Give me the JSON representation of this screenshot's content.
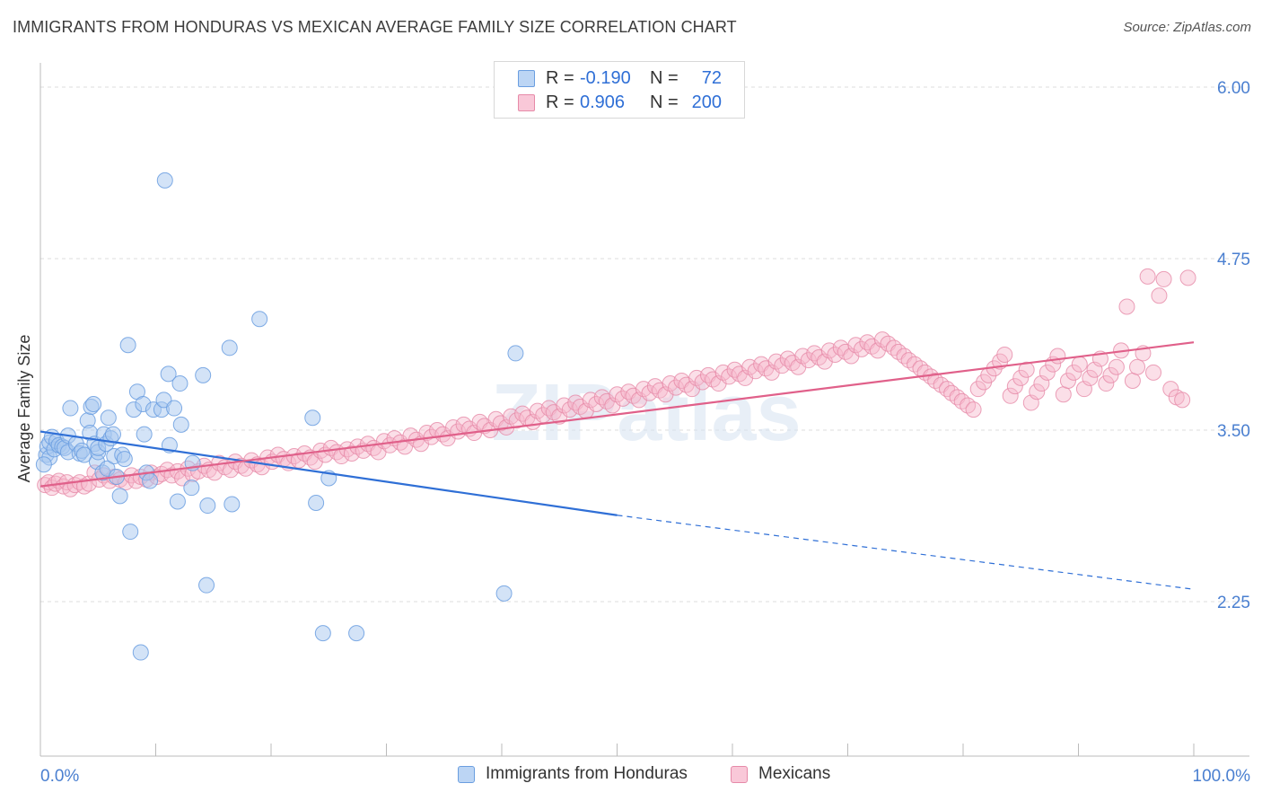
{
  "title": "IMMIGRANTS FROM HONDURAS VS MEXICAN AVERAGE FAMILY SIZE CORRELATION CHART",
  "source": "Source: ZipAtlas.com",
  "watermark": "ZIPatlas",
  "colors": {
    "blue_fill": "#a8c8f0",
    "blue_stroke": "#6a9ee0",
    "blue_line": "#2f6fd6",
    "pink_fill": "#f6b8cc",
    "pink_stroke": "#e68aa8",
    "pink_line": "#e0608a",
    "axis_label": "#4a7fd0"
  },
  "legend": {
    "rows": [
      {
        "r_label": "R =",
        "r_value": "-0.190",
        "n_label": "N =",
        "n_value": "72",
        "series": "blue"
      },
      {
        "r_label": "R =",
        "r_value": "0.906",
        "n_label": "N =",
        "n_value": "200",
        "series": "pink"
      }
    ]
  },
  "bottom_legend": [
    {
      "label": "Immigrants from Honduras",
      "series": "blue"
    },
    {
      "label": "Mexicans",
      "series": "pink"
    }
  ],
  "chart_data": {
    "type": "scatter",
    "title": "IMMIGRANTS FROM HONDURAS VS MEXICAN AVERAGE FAMILY SIZE CORRELATION CHART",
    "xlabel": "",
    "ylabel": "Average Family Size",
    "xlim": [
      0,
      100
    ],
    "ylim": [
      1.05,
      6.12
    ],
    "x_tick_labels": [
      "0.0%",
      "100.0%"
    ],
    "y_ticks": [
      2.25,
      3.5,
      4.75,
      6.0
    ],
    "y_tick_labels": [
      "2.25",
      "3.50",
      "4.75",
      "6.00"
    ],
    "grid": "horizontal dashed",
    "legend_position": "top-center",
    "series": [
      {
        "name": "Immigrants from Honduras",
        "color": "#a8c8f0",
        "trend": {
          "x_solid": [
            0,
            50
          ],
          "y_solid": [
            3.49,
            2.88
          ],
          "x_dashed": [
            50,
            100
          ],
          "y_dashed": [
            2.88,
            2.34
          ]
        },
        "points": [
          [
            0.5,
            3.32
          ],
          [
            0.6,
            3.38
          ],
          [
            0.8,
            3.41
          ],
          [
            0.8,
            3.3
          ],
          [
            1.0,
            3.45
          ],
          [
            1.2,
            3.36
          ],
          [
            1.4,
            3.42
          ],
          [
            1.6,
            3.39
          ],
          [
            1.9,
            3.38
          ],
          [
            2.1,
            3.37
          ],
          [
            2.4,
            3.46
          ],
          [
            2.4,
            3.34
          ],
          [
            2.6,
            3.66
          ],
          [
            3.1,
            3.4
          ],
          [
            3.4,
            3.33
          ],
          [
            3.6,
            3.35
          ],
          [
            3.8,
            3.32
          ],
          [
            4.1,
            3.57
          ],
          [
            4.3,
            3.48
          ],
          [
            4.4,
            3.67
          ],
          [
            4.6,
            3.69
          ],
          [
            4.7,
            3.4
          ],
          [
            4.9,
            3.27
          ],
          [
            5.0,
            3.34
          ],
          [
            5.0,
            3.37
          ],
          [
            5.4,
            3.19
          ],
          [
            5.5,
            3.47
          ],
          [
            5.7,
            3.4
          ],
          [
            5.8,
            3.22
          ],
          [
            5.9,
            3.59
          ],
          [
            6.1,
            3.44
          ],
          [
            6.3,
            3.47
          ],
          [
            6.4,
            3.31
          ],
          [
            6.6,
            3.16
          ],
          [
            6.9,
            3.02
          ],
          [
            7.1,
            3.32
          ],
          [
            7.3,
            3.29
          ],
          [
            7.6,
            4.12
          ],
          [
            7.8,
            2.76
          ],
          [
            8.1,
            3.65
          ],
          [
            8.4,
            3.78
          ],
          [
            8.7,
            1.88
          ],
          [
            8.9,
            3.69
          ],
          [
            9.0,
            3.47
          ],
          [
            9.2,
            3.19
          ],
          [
            9.5,
            3.13
          ],
          [
            9.8,
            3.65
          ],
          [
            10.5,
            3.65
          ],
          [
            10.7,
            3.72
          ],
          [
            10.8,
            5.32
          ],
          [
            11.1,
            3.91
          ],
          [
            11.2,
            3.39
          ],
          [
            11.6,
            3.66
          ],
          [
            11.9,
            2.98
          ],
          [
            12.1,
            3.84
          ],
          [
            12.2,
            3.54
          ],
          [
            13.1,
            3.08
          ],
          [
            13.2,
            3.26
          ],
          [
            14.1,
            3.9
          ],
          [
            14.4,
            2.37
          ],
          [
            14.5,
            2.95
          ],
          [
            16.4,
            4.1
          ],
          [
            16.6,
            2.96
          ],
          [
            19.0,
            4.31
          ],
          [
            23.6,
            3.59
          ],
          [
            23.9,
            2.97
          ],
          [
            24.5,
            2.02
          ],
          [
            25.0,
            3.15
          ],
          [
            27.4,
            2.02
          ],
          [
            40.2,
            2.31
          ],
          [
            41.2,
            4.06
          ],
          [
            0.3,
            3.25
          ]
        ]
      },
      {
        "name": "Mexicans",
        "color": "#f6b8cc",
        "trend": {
          "x_solid": [
            0,
            100
          ],
          "y_solid": [
            3.09,
            4.14
          ]
        },
        "points": [
          [
            0.4,
            3.1
          ],
          [
            0.7,
            3.12
          ],
          [
            1.0,
            3.08
          ],
          [
            1.3,
            3.11
          ],
          [
            1.6,
            3.13
          ],
          [
            2.0,
            3.09
          ],
          [
            2.3,
            3.12
          ],
          [
            2.6,
            3.07
          ],
          [
            3.0,
            3.1
          ],
          [
            3.4,
            3.12
          ],
          [
            3.8,
            3.09
          ],
          [
            4.2,
            3.11
          ],
          [
            4.7,
            3.19
          ],
          [
            5.1,
            3.14
          ],
          [
            5.5,
            3.17
          ],
          [
            6.0,
            3.13
          ],
          [
            6.4,
            3.16
          ],
          [
            6.9,
            3.14
          ],
          [
            7.4,
            3.12
          ],
          [
            7.9,
            3.17
          ],
          [
            8.3,
            3.13
          ],
          [
            8.7,
            3.16
          ],
          [
            9.2,
            3.14
          ],
          [
            9.6,
            3.19
          ],
          [
            10.1,
            3.16
          ],
          [
            10.5,
            3.18
          ],
          [
            11.0,
            3.21
          ],
          [
            11.4,
            3.17
          ],
          [
            11.9,
            3.2
          ],
          [
            12.3,
            3.15
          ],
          [
            12.8,
            3.22
          ],
          [
            13.2,
            3.18
          ],
          [
            13.7,
            3.2
          ],
          [
            14.2,
            3.24
          ],
          [
            14.6,
            3.21
          ],
          [
            15.1,
            3.19
          ],
          [
            15.5,
            3.26
          ],
          [
            16.0,
            3.23
          ],
          [
            16.5,
            3.21
          ],
          [
            16.9,
            3.27
          ],
          [
            17.4,
            3.24
          ],
          [
            17.8,
            3.22
          ],
          [
            18.3,
            3.28
          ],
          [
            18.8,
            3.25
          ],
          [
            19.2,
            3.23
          ],
          [
            19.7,
            3.3
          ],
          [
            20.1,
            3.27
          ],
          [
            20.6,
            3.32
          ],
          [
            21.1,
            3.29
          ],
          [
            21.5,
            3.26
          ],
          [
            22.0,
            3.31
          ],
          [
            22.4,
            3.28
          ],
          [
            22.9,
            3.33
          ],
          [
            23.4,
            3.3
          ],
          [
            23.8,
            3.27
          ],
          [
            24.3,
            3.35
          ],
          [
            24.7,
            3.32
          ],
          [
            25.2,
            3.37
          ],
          [
            25.7,
            3.34
          ],
          [
            26.1,
            3.31
          ],
          [
            26.6,
            3.36
          ],
          [
            27.0,
            3.33
          ],
          [
            27.5,
            3.38
          ],
          [
            28.0,
            3.35
          ],
          [
            28.4,
            3.4
          ],
          [
            28.9,
            3.37
          ],
          [
            29.3,
            3.34
          ],
          [
            29.8,
            3.42
          ],
          [
            30.3,
            3.39
          ],
          [
            30.7,
            3.44
          ],
          [
            31.2,
            3.41
          ],
          [
            31.6,
            3.38
          ],
          [
            32.1,
            3.46
          ],
          [
            32.6,
            3.43
          ],
          [
            33.0,
            3.4
          ],
          [
            33.5,
            3.48
          ],
          [
            33.9,
            3.45
          ],
          [
            34.4,
            3.5
          ],
          [
            34.9,
            3.47
          ],
          [
            35.3,
            3.44
          ],
          [
            35.8,
            3.52
          ],
          [
            36.2,
            3.49
          ],
          [
            36.7,
            3.54
          ],
          [
            37.2,
            3.51
          ],
          [
            37.6,
            3.48
          ],
          [
            38.1,
            3.56
          ],
          [
            38.5,
            3.53
          ],
          [
            39.0,
            3.5
          ],
          [
            39.5,
            3.58
          ],
          [
            39.9,
            3.55
          ],
          [
            40.4,
            3.52
          ],
          [
            40.8,
            3.6
          ],
          [
            41.3,
            3.57
          ],
          [
            41.8,
            3.62
          ],
          [
            42.2,
            3.59
          ],
          [
            42.7,
            3.56
          ],
          [
            43.1,
            3.64
          ],
          [
            43.6,
            3.61
          ],
          [
            44.1,
            3.66
          ],
          [
            44.5,
            3.63
          ],
          [
            45.0,
            3.6
          ],
          [
            45.4,
            3.68
          ],
          [
            45.9,
            3.65
          ],
          [
            46.4,
            3.7
          ],
          [
            46.8,
            3.67
          ],
          [
            47.3,
            3.64
          ],
          [
            47.7,
            3.72
          ],
          [
            48.2,
            3.69
          ],
          [
            48.7,
            3.74
          ],
          [
            49.1,
            3.71
          ],
          [
            49.6,
            3.68
          ],
          [
            50.0,
            3.76
          ],
          [
            50.5,
            3.73
          ],
          [
            51.0,
            3.78
          ],
          [
            51.4,
            3.75
          ],
          [
            51.9,
            3.72
          ],
          [
            52.3,
            3.8
          ],
          [
            52.8,
            3.77
          ],
          [
            53.3,
            3.82
          ],
          [
            53.7,
            3.79
          ],
          [
            54.2,
            3.76
          ],
          [
            54.6,
            3.84
          ],
          [
            55.1,
            3.81
          ],
          [
            55.6,
            3.86
          ],
          [
            56.0,
            3.83
          ],
          [
            56.5,
            3.8
          ],
          [
            56.9,
            3.88
          ],
          [
            57.4,
            3.85
          ],
          [
            57.9,
            3.9
          ],
          [
            58.3,
            3.87
          ],
          [
            58.8,
            3.84
          ],
          [
            59.2,
            3.92
          ],
          [
            59.7,
            3.89
          ],
          [
            60.2,
            3.94
          ],
          [
            60.6,
            3.91
          ],
          [
            61.1,
            3.88
          ],
          [
            61.5,
            3.96
          ],
          [
            62.0,
            3.93
          ],
          [
            62.5,
            3.98
          ],
          [
            62.9,
            3.95
          ],
          [
            63.4,
            3.92
          ],
          [
            63.8,
            4.0
          ],
          [
            64.3,
            3.97
          ],
          [
            64.8,
            4.02
          ],
          [
            65.2,
            3.99
          ],
          [
            65.7,
            3.96
          ],
          [
            66.1,
            4.04
          ],
          [
            66.6,
            4.01
          ],
          [
            67.1,
            4.06
          ],
          [
            67.5,
            4.03
          ],
          [
            68.0,
            4.0
          ],
          [
            68.4,
            4.08
          ],
          [
            68.9,
            4.05
          ],
          [
            69.4,
            4.1
          ],
          [
            69.8,
            4.07
          ],
          [
            70.3,
            4.04
          ],
          [
            70.7,
            4.12
          ],
          [
            71.2,
            4.09
          ],
          [
            71.7,
            4.14
          ],
          [
            72.1,
            4.11
          ],
          [
            72.6,
            4.08
          ],
          [
            73.0,
            4.16
          ],
          [
            73.5,
            4.13
          ],
          [
            74.0,
            4.1
          ],
          [
            74.4,
            4.07
          ],
          [
            74.9,
            4.04
          ],
          [
            75.3,
            4.01
          ],
          [
            75.8,
            3.98
          ],
          [
            76.3,
            3.95
          ],
          [
            76.7,
            3.92
          ],
          [
            77.2,
            3.89
          ],
          [
            77.6,
            3.86
          ],
          [
            78.1,
            3.83
          ],
          [
            78.6,
            3.8
          ],
          [
            79.0,
            3.77
          ],
          [
            79.5,
            3.74
          ],
          [
            79.9,
            3.71
          ],
          [
            80.4,
            3.68
          ],
          [
            80.9,
            3.65
          ],
          [
            81.3,
            3.8
          ],
          [
            81.8,
            3.85
          ],
          [
            82.2,
            3.9
          ],
          [
            82.7,
            3.95
          ],
          [
            83.2,
            4.0
          ],
          [
            83.6,
            4.05
          ],
          [
            84.1,
            3.75
          ],
          [
            84.5,
            3.82
          ],
          [
            85.0,
            3.88
          ],
          [
            85.5,
            3.94
          ],
          [
            85.9,
            3.7
          ],
          [
            86.4,
            3.78
          ],
          [
            86.8,
            3.84
          ],
          [
            87.3,
            3.92
          ],
          [
            87.8,
            3.98
          ],
          [
            88.2,
            4.04
          ],
          [
            88.7,
            3.76
          ],
          [
            89.1,
            3.86
          ],
          [
            89.6,
            3.92
          ],
          [
            90.1,
            3.98
          ],
          [
            90.5,
            3.8
          ],
          [
            91.0,
            3.88
          ],
          [
            91.4,
            3.94
          ],
          [
            91.9,
            4.02
          ],
          [
            92.4,
            3.84
          ],
          [
            92.8,
            3.9
          ],
          [
            93.3,
            3.96
          ],
          [
            93.7,
            4.08
          ],
          [
            94.2,
            4.4
          ],
          [
            94.7,
            3.86
          ],
          [
            95.1,
            3.96
          ],
          [
            95.6,
            4.06
          ],
          [
            96.0,
            4.62
          ],
          [
            96.5,
            3.92
          ],
          [
            97.0,
            4.48
          ],
          [
            97.4,
            4.6
          ],
          [
            98.0,
            3.8
          ],
          [
            98.5,
            3.74
          ],
          [
            99.0,
            3.72
          ],
          [
            99.5,
            4.61
          ]
        ]
      }
    ]
  }
}
